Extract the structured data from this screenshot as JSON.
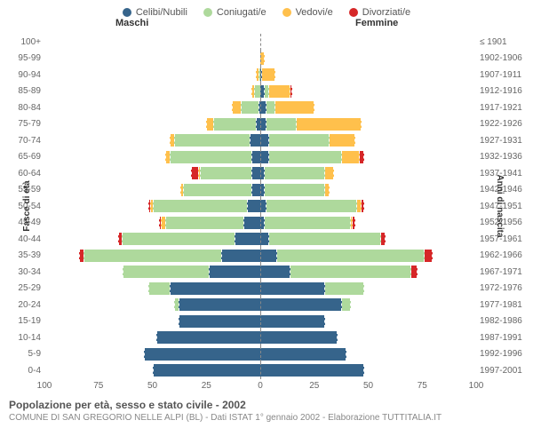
{
  "legend": [
    {
      "label": "Celibi/Nubili",
      "color": "#36648b"
    },
    {
      "label": "Coniugati/e",
      "color": "#aed99c"
    },
    {
      "label": "Vedovi/e",
      "color": "#ffc04c"
    },
    {
      "label": "Divorziati/e",
      "color": "#d62728"
    }
  ],
  "headers": {
    "male": "Maschi",
    "female": "Femmine"
  },
  "ylabels": {
    "left": "Fasce di età",
    "right": "Anni di nascita"
  },
  "xaxis": {
    "max": 100,
    "ticks": [
      100,
      75,
      50,
      25,
      0,
      25,
      50,
      75,
      100
    ]
  },
  "colors": {
    "celibi": "#36648b",
    "coniugati": "#aed99c",
    "vedovi": "#ffc04c",
    "divorziati": "#d62728",
    "grid": "#e0e0e0",
    "centerline": "#888"
  },
  "title": "Popolazione per età, sesso e stato civile - 2002",
  "subtitle": "COMUNE DI SAN GREGORIO NELLE ALPI (BL) - Dati ISTAT 1° gennaio 2002 - Elaborazione TUTTITALIA.IT",
  "rows": [
    {
      "age": "100+",
      "birth": "≤ 1901",
      "m": {
        "c": 0,
        "co": 0,
        "v": 0,
        "d": 0
      },
      "f": {
        "c": 0,
        "co": 0,
        "v": 0,
        "d": 0
      }
    },
    {
      "age": "95-99",
      "birth": "1902-1906",
      "m": {
        "c": 0,
        "co": 0,
        "v": 0,
        "d": 0
      },
      "f": {
        "c": 0,
        "co": 0,
        "v": 2,
        "d": 0
      }
    },
    {
      "age": "90-94",
      "birth": "1907-1911",
      "m": {
        "c": 0,
        "co": 1,
        "v": 1,
        "d": 0
      },
      "f": {
        "c": 1,
        "co": 0,
        "v": 6,
        "d": 0
      }
    },
    {
      "age": "85-89",
      "birth": "1912-1916",
      "m": {
        "c": 0,
        "co": 3,
        "v": 1,
        "d": 0
      },
      "f": {
        "c": 2,
        "co": 2,
        "v": 10,
        "d": 1
      }
    },
    {
      "age": "80-84",
      "birth": "1917-1921",
      "m": {
        "c": 1,
        "co": 8,
        "v": 4,
        "d": 0
      },
      "f": {
        "c": 3,
        "co": 4,
        "v": 18,
        "d": 0
      }
    },
    {
      "age": "75-79",
      "birth": "1922-1926",
      "m": {
        "c": 2,
        "co": 20,
        "v": 3,
        "d": 0
      },
      "f": {
        "c": 3,
        "co": 14,
        "v": 30,
        "d": 0
      }
    },
    {
      "age": "70-74",
      "birth": "1927-1931",
      "m": {
        "c": 5,
        "co": 35,
        "v": 2,
        "d": 0
      },
      "f": {
        "c": 4,
        "co": 28,
        "v": 12,
        "d": 0
      }
    },
    {
      "age": "65-69",
      "birth": "1932-1936",
      "m": {
        "c": 4,
        "co": 38,
        "v": 2,
        "d": 0
      },
      "f": {
        "c": 4,
        "co": 34,
        "v": 8,
        "d": 2
      }
    },
    {
      "age": "60-64",
      "birth": "1937-1941",
      "m": {
        "c": 4,
        "co": 24,
        "v": 1,
        "d": 3
      },
      "f": {
        "c": 2,
        "co": 28,
        "v": 4,
        "d": 0
      }
    },
    {
      "age": "55-59",
      "birth": "1942-1946",
      "m": {
        "c": 4,
        "co": 32,
        "v": 1,
        "d": 0
      },
      "f": {
        "c": 2,
        "co": 28,
        "v": 2,
        "d": 0
      }
    },
    {
      "age": "50-54",
      "birth": "1947-1951",
      "m": {
        "c": 6,
        "co": 44,
        "v": 1,
        "d": 1
      },
      "f": {
        "c": 3,
        "co": 42,
        "v": 2,
        "d": 1
      }
    },
    {
      "age": "45-49",
      "birth": "1952-1956",
      "m": {
        "c": 8,
        "co": 36,
        "v": 2,
        "d": 1
      },
      "f": {
        "c": 2,
        "co": 40,
        "v": 1,
        "d": 1
      }
    },
    {
      "age": "40-44",
      "birth": "1957-1961",
      "m": {
        "c": 12,
        "co": 52,
        "v": 0,
        "d": 2
      },
      "f": {
        "c": 4,
        "co": 52,
        "v": 0,
        "d": 2
      }
    },
    {
      "age": "35-39",
      "birth": "1962-1966",
      "m": {
        "c": 18,
        "co": 64,
        "v": 0,
        "d": 2
      },
      "f": {
        "c": 8,
        "co": 68,
        "v": 0,
        "d": 4
      }
    },
    {
      "age": "30-34",
      "birth": "1967-1971",
      "m": {
        "c": 24,
        "co": 40,
        "v": 0,
        "d": 0
      },
      "f": {
        "c": 14,
        "co": 56,
        "v": 0,
        "d": 3
      }
    },
    {
      "age": "25-29",
      "birth": "1972-1976",
      "m": {
        "c": 42,
        "co": 10,
        "v": 0,
        "d": 0
      },
      "f": {
        "c": 30,
        "co": 18,
        "v": 0,
        "d": 0
      }
    },
    {
      "age": "20-24",
      "birth": "1977-1981",
      "m": {
        "c": 38,
        "co": 2,
        "v": 0,
        "d": 0
      },
      "f": {
        "c": 38,
        "co": 4,
        "v": 0,
        "d": 0
      }
    },
    {
      "age": "15-19",
      "birth": "1982-1986",
      "m": {
        "c": 38,
        "co": 0,
        "v": 0,
        "d": 0
      },
      "f": {
        "c": 30,
        "co": 0,
        "v": 0,
        "d": 0
      }
    },
    {
      "age": "10-14",
      "birth": "1987-1991",
      "m": {
        "c": 48,
        "co": 0,
        "v": 0,
        "d": 0
      },
      "f": {
        "c": 36,
        "co": 0,
        "v": 0,
        "d": 0
      }
    },
    {
      "age": "5-9",
      "birth": "1992-1996",
      "m": {
        "c": 54,
        "co": 0,
        "v": 0,
        "d": 0
      },
      "f": {
        "c": 40,
        "co": 0,
        "v": 0,
        "d": 0
      }
    },
    {
      "age": "0-4",
      "birth": "1997-2001",
      "m": {
        "c": 50,
        "co": 0,
        "v": 0,
        "d": 0
      },
      "f": {
        "c": 48,
        "co": 0,
        "v": 0,
        "d": 0
      }
    }
  ]
}
